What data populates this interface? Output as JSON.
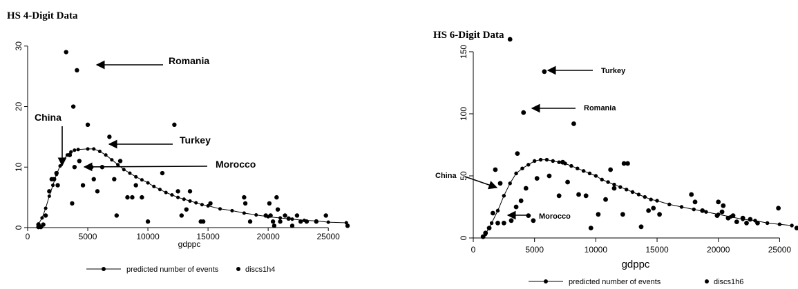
{
  "chart_data": [
    {
      "type": "scatter",
      "title": "HS 4-Digit Data",
      "xlabel": "gdppc",
      "ylabel": "",
      "xlim": [
        0,
        27000
      ],
      "ylim": [
        0,
        31
      ],
      "xticks": [
        0,
        5000,
        10000,
        15000,
        20000,
        25000
      ],
      "yticks": [
        0,
        10,
        20,
        30
      ],
      "legend_position": "bottom",
      "series": [
        {
          "name": "predicted number of events",
          "style": "line-with-markers",
          "points": [
            [
              900,
              0.6
            ],
            [
              1200,
              1.6
            ],
            [
              1500,
              3.2
            ],
            [
              1800,
              5.2
            ],
            [
              2100,
              7.0
            ],
            [
              2400,
              8.8
            ],
            [
              2700,
              10.2
            ],
            [
              3000,
              11.3
            ],
            [
              3300,
              12.0
            ],
            [
              3600,
              12.5
            ],
            [
              3900,
              12.8
            ],
            [
              4200,
              12.9
            ],
            [
              5000,
              13.0
            ],
            [
              5500,
              13.0
            ],
            [
              6000,
              12.6
            ],
            [
              6500,
              12.0
            ],
            [
              7000,
              11.2
            ],
            [
              7500,
              10.4
            ],
            [
              8000,
              9.6
            ],
            [
              8500,
              9.0
            ],
            [
              9000,
              8.4
            ],
            [
              9500,
              7.9
            ],
            [
              10000,
              7.4
            ],
            [
              10500,
              6.8
            ],
            [
              11000,
              6.3
            ],
            [
              11500,
              5.8
            ],
            [
              12000,
              5.4
            ],
            [
              12500,
              5.0
            ],
            [
              13000,
              4.7
            ],
            [
              13500,
              4.4
            ],
            [
              14000,
              4.1
            ],
            [
              14500,
              3.8
            ],
            [
              15000,
              3.6
            ],
            [
              16000,
              3.1
            ],
            [
              17000,
              2.8
            ],
            [
              18000,
              2.4
            ],
            [
              19000,
              2.1
            ],
            [
              20000,
              1.8
            ],
            [
              21000,
              1.6
            ],
            [
              22000,
              1.4
            ],
            [
              23000,
              1.2
            ],
            [
              24000,
              1.1
            ],
            [
              25000,
              0.9
            ],
            [
              26500,
              0.8
            ]
          ]
        },
        {
          "name": "discs1h4",
          "style": "markers",
          "points": [
            [
              900,
              0.1
            ],
            [
              900,
              0.5
            ],
            [
              1100,
              0.1
            ],
            [
              1300,
              0.5
            ],
            [
              1500,
              2
            ],
            [
              1800,
              6
            ],
            [
              2000,
              8
            ],
            [
              2200,
              8
            ],
            [
              2400,
              9
            ],
            [
              2500,
              7
            ],
            [
              3200,
              29
            ],
            [
              3500,
              12
            ],
            [
              3700,
              4
            ],
            [
              3800,
              20
            ],
            [
              3900,
              10
            ],
            [
              4100,
              26
            ],
            [
              4300,
              11
            ],
            [
              4600,
              7
            ],
            [
              5000,
              17
            ],
            [
              5300,
              10
            ],
            [
              5500,
              8
            ],
            [
              5800,
              6
            ],
            [
              6200,
              10
            ],
            [
              6800,
              15
            ],
            [
              7200,
              8
            ],
            [
              7400,
              2
            ],
            [
              7700,
              11
            ],
            [
              8300,
              5
            ],
            [
              8700,
              5
            ],
            [
              9000,
              7
            ],
            [
              9500,
              5
            ],
            [
              10000,
              1
            ],
            [
              11200,
              9
            ],
            [
              12200,
              17
            ],
            [
              12500,
              6
            ],
            [
              12800,
              2
            ],
            [
              13200,
              3
            ],
            [
              13500,
              6
            ],
            [
              14400,
              1
            ],
            [
              14600,
              1
            ],
            [
              15200,
              4
            ],
            [
              18000,
              5
            ],
            [
              18100,
              4
            ],
            [
              18500,
              1
            ],
            [
              19800,
              2
            ],
            [
              20100,
              4
            ],
            [
              20200,
              2
            ],
            [
              20400,
              1
            ],
            [
              20500,
              0.3
            ],
            [
              20700,
              5
            ],
            [
              20800,
              3
            ],
            [
              21000,
              1
            ],
            [
              21400,
              2
            ],
            [
              21700,
              1.5
            ],
            [
              22000,
              0.3
            ],
            [
              22400,
              2
            ],
            [
              22700,
              1
            ],
            [
              23200,
              1
            ],
            [
              24000,
              1
            ],
            [
              24800,
              2
            ],
            [
              26600,
              0.3
            ]
          ]
        }
      ],
      "annotations": [
        {
          "text": "China",
          "x": 2300,
          "y": 9
        },
        {
          "text": "Romania",
          "x": 4100,
          "y": 26
        },
        {
          "text": "Turkey",
          "x": 6200,
          "y": 13
        },
        {
          "text": "Morocco",
          "x": 4200,
          "y": 10
        }
      ]
    },
    {
      "type": "scatter",
      "title": "HS 6-Digit Data",
      "xlabel": "gdppc",
      "ylabel": "",
      "xlim": [
        0,
        26500
      ],
      "ylim": [
        0,
        165
      ],
      "xticks": [
        0,
        5000,
        10000,
        15000,
        20000,
        25000
      ],
      "yticks": [
        0,
        50,
        100,
        150
      ],
      "legend_position": "bottom",
      "series": [
        {
          "name": "predicted number of events",
          "style": "line-with-markers",
          "points": [
            [
              1000,
              3
            ],
            [
              1500,
              12
            ],
            [
              2000,
              22
            ],
            [
              2500,
              34
            ],
            [
              3000,
              44
            ],
            [
              3500,
              52
            ],
            [
              4000,
              56
            ],
            [
              4500,
              59
            ],
            [
              5000,
              62
            ],
            [
              5500,
              63
            ],
            [
              6000,
              63
            ],
            [
              6500,
              62
            ],
            [
              7000,
              61
            ],
            [
              7500,
              60
            ],
            [
              8000,
              58
            ],
            [
              8500,
              56
            ],
            [
              9000,
              54
            ],
            [
              9500,
              52
            ],
            [
              10000,
              50
            ],
            [
              10500,
              47
            ],
            [
              11000,
              45
            ],
            [
              11500,
              43
            ],
            [
              12000,
              41
            ],
            [
              12500,
              39
            ],
            [
              13000,
              37
            ],
            [
              13500,
              35
            ],
            [
              14000,
              33
            ],
            [
              14500,
              31
            ],
            [
              15000,
              30
            ],
            [
              16000,
              27
            ],
            [
              17000,
              25
            ],
            [
              18000,
              23
            ],
            [
              19000,
              21
            ],
            [
              20000,
              19
            ],
            [
              21000,
              17
            ],
            [
              22000,
              15
            ],
            [
              23000,
              14
            ],
            [
              24000,
              12
            ],
            [
              25000,
              11
            ],
            [
              26000,
              10
            ]
          ]
        },
        {
          "name": "discs1h6",
          "style": "markers",
          "points": [
            [
              800,
              1
            ],
            [
              1000,
              4
            ],
            [
              1300,
              8
            ],
            [
              1600,
              20
            ],
            [
              1800,
              55
            ],
            [
              2000,
              12
            ],
            [
              2200,
              44
            ],
            [
              2500,
              12
            ],
            [
              3000,
              160
            ],
            [
              3100,
              14
            ],
            [
              3500,
              25
            ],
            [
              3600,
              68
            ],
            [
              3900,
              30
            ],
            [
              4100,
              101
            ],
            [
              4300,
              40
            ],
            [
              4500,
              18
            ],
            [
              4900,
              14
            ],
            [
              5200,
              48
            ],
            [
              5800,
              134
            ],
            [
              6200,
              50
            ],
            [
              7000,
              34
            ],
            [
              7300,
              61
            ],
            [
              7700,
              45
            ],
            [
              8200,
              92
            ],
            [
              8600,
              35
            ],
            [
              9200,
              34
            ],
            [
              9600,
              8
            ],
            [
              10200,
              19
            ],
            [
              10800,
              31
            ],
            [
              11200,
              55
            ],
            [
              11500,
              40
            ],
            [
              12200,
              19
            ],
            [
              12300,
              60
            ],
            [
              12600,
              60
            ],
            [
              13700,
              9
            ],
            [
              14300,
              22
            ],
            [
              14700,
              24
            ],
            [
              15200,
              19
            ],
            [
              17800,
              35
            ],
            [
              18100,
              29
            ],
            [
              18700,
              22
            ],
            [
              19900,
              18
            ],
            [
              20000,
              29
            ],
            [
              20300,
              21
            ],
            [
              20400,
              26
            ],
            [
              20800,
              16
            ],
            [
              21200,
              18
            ],
            [
              21500,
              13
            ],
            [
              22000,
              16
            ],
            [
              22300,
              12
            ],
            [
              22600,
              15
            ],
            [
              23200,
              12
            ],
            [
              24900,
              24
            ],
            [
              26400,
              8
            ]
          ]
        }
      ],
      "annotations": [
        {
          "text": "China",
          "x": 2200,
          "y": 44
        },
        {
          "text": "Turkey",
          "x": 6100,
          "y": 134
        },
        {
          "text": "Romania",
          "x": 4700,
          "y": 102
        },
        {
          "text": "Morocco",
          "x": 3600,
          "y": 24
        }
      ]
    }
  ]
}
